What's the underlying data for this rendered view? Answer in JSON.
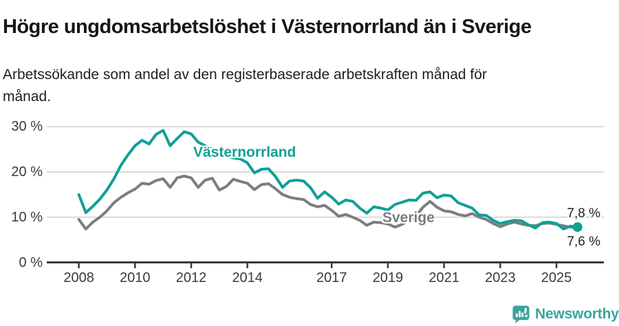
{
  "header": {
    "title": "Högre ungdomsarbetslöshet i Västernorrland än i Sverige",
    "subtitle": "Arbetssökande som andel av den registerbaserade arbetskraften månad för månad."
  },
  "colors": {
    "vasternorrland": "#0fa094",
    "sverige": "#7d7d7d",
    "grid": "#dadada",
    "axis": "#3a3a3a",
    "brand": "#3aa39c"
  },
  "chart_data": {
    "type": "line",
    "title": "Högre ungdomsarbetslöshet i Västernorrland än i Sverige",
    "ylabel": "Arbetssökande som andel av den registerbaserade arbetskraften (%)",
    "x_start": 2008.0,
    "x_step_years": 0.25,
    "x_axis": {
      "ticks": [
        2008,
        2010,
        2012,
        2014,
        2017,
        2019,
        2021,
        2023,
        2025
      ],
      "tick_labels": [
        "2008",
        "2010",
        "2012",
        "2014",
        "2017",
        "2019",
        "2021",
        "2023",
        "2025"
      ],
      "range": [
        2007.9,
        2026.7
      ]
    },
    "y_axis": {
      "ticks": [
        0,
        10,
        20,
        30
      ],
      "tick_labels": [
        "0 %",
        "10 %",
        "20 %",
        "30 %"
      ],
      "range": [
        0,
        31.5
      ],
      "gridlines": [
        10,
        20,
        30
      ]
    },
    "grid": "horizontal-only",
    "legend_position": "inline-labels",
    "unit": "%",
    "series": [
      {
        "name": "Västernorrland",
        "color": "#0fa094",
        "end_label": "7,8 %",
        "end_value": 7.8,
        "end_dot": true,
        "values": [
          15.0,
          11.0,
          12.4,
          14.0,
          16.0,
          18.5,
          21.5,
          23.8,
          25.8,
          27.0,
          26.2,
          28.3,
          29.2,
          25.8,
          27.4,
          28.9,
          28.4,
          26.6,
          25.8,
          25.0,
          24.3,
          23.6,
          23.1,
          22.9,
          22.0,
          19.8,
          20.6,
          20.7,
          19.0,
          16.6,
          18.0,
          18.2,
          18.0,
          16.5,
          14.2,
          15.6,
          14.4,
          12.9,
          13.8,
          13.5,
          12.0,
          10.9,
          12.3,
          12.0,
          11.6,
          12.8,
          13.3,
          13.8,
          13.7,
          15.3,
          15.6,
          14.3,
          14.9,
          14.7,
          13.2,
          12.6,
          12.0,
          10.5,
          10.4,
          9.3,
          8.6,
          9.0,
          9.3,
          9.2,
          8.3,
          7.6,
          8.8,
          8.9,
          8.6,
          7.4,
          8.0,
          7.8
        ]
      },
      {
        "name": "Sverige",
        "color": "#7d7d7d",
        "end_label": "7,6 %",
        "end_value": 7.6,
        "end_dot": false,
        "values": [
          9.5,
          7.4,
          8.9,
          10.0,
          11.4,
          13.2,
          14.4,
          15.4,
          16.2,
          17.5,
          17.3,
          18.1,
          18.5,
          16.6,
          18.7,
          19.1,
          18.7,
          16.6,
          18.2,
          18.6,
          16.0,
          16.8,
          18.4,
          17.9,
          17.5,
          16.1,
          17.2,
          17.4,
          16.3,
          15.0,
          14.4,
          14.1,
          13.9,
          12.8,
          12.3,
          12.6,
          11.5,
          10.2,
          10.6,
          10.0,
          9.3,
          8.2,
          8.9,
          8.8,
          8.5,
          7.8,
          8.4,
          9.3,
          10.3,
          12.2,
          13.5,
          12.2,
          11.4,
          11.2,
          10.6,
          10.3,
          10.8,
          10.0,
          9.5,
          8.6,
          7.9,
          8.5,
          8.9,
          8.5,
          8.2,
          8.1,
          8.6,
          8.7,
          8.4,
          8.1,
          7.8,
          7.6
        ]
      }
    ]
  },
  "footer": {
    "brand": "Newsworthy"
  }
}
